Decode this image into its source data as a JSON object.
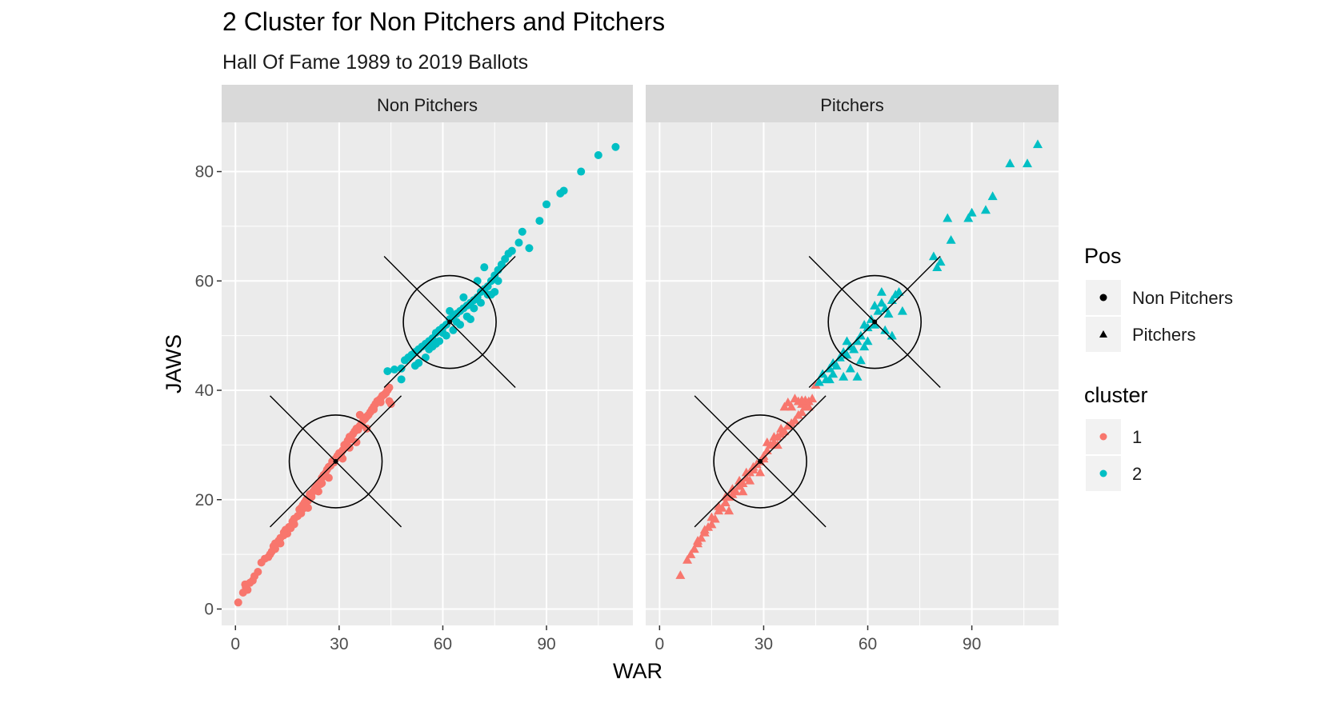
{
  "chart_data": {
    "type": "scatter",
    "title": "2 Cluster for Non Pitchers and Pitchers",
    "subtitle": "Hall Of Fame 1989 to 2019 Ballots",
    "xlabel": "WAR",
    "ylabel": "JAWS",
    "xlim": [
      -4,
      115
    ],
    "ylim": [
      -3,
      89
    ],
    "x_ticks": [
      0,
      30,
      60,
      90
    ],
    "y_ticks": [
      0,
      20,
      40,
      60,
      80
    ],
    "x_tick_labels": [
      "0",
      "30",
      "60",
      "90"
    ],
    "y_tick_labels": [
      "0",
      "20",
      "40",
      "60",
      "80"
    ],
    "grid": true,
    "legend_position": "right",
    "colors": {
      "1": "#F8766D",
      "2": "#00BFC4",
      "panel_bg": "#EBEBEB",
      "strip_bg": "#D9D9D9",
      "grid": "#FFFFFF",
      "ellipse": "#000000"
    },
    "legends": [
      {
        "title": "Pos",
        "items": [
          {
            "label": "Non Pitchers",
            "shape": "circle"
          },
          {
            "label": "Pitchers",
            "shape": "triangle"
          }
        ]
      },
      {
        "title": "cluster",
        "items": [
          {
            "label": "1",
            "color": "#F8766D"
          },
          {
            "label": "2",
            "color": "#00BFC4"
          }
        ]
      }
    ],
    "facets": [
      {
        "label": "Non Pitchers",
        "shape": "circle",
        "centers": [
          {
            "cluster": "1",
            "x": 29,
            "y": 27
          },
          {
            "cluster": "2",
            "x": 62,
            "y": 52.5
          }
        ],
        "cluster_1": [
          [
            0.8,
            1.2
          ],
          [
            2.2,
            3
          ],
          [
            2.8,
            4.5
          ],
          [
            3.5,
            3.5
          ],
          [
            4.2,
            4.8
          ],
          [
            5.5,
            6
          ],
          [
            6.5,
            6.8
          ],
          [
            8.5,
            9.2
          ],
          [
            9.5,
            9.5
          ],
          [
            10.5,
            10.5
          ],
          [
            11,
            11.5
          ],
          [
            11.5,
            12
          ],
          [
            12.5,
            12.5
          ],
          [
            13,
            13
          ],
          [
            14,
            13.5
          ],
          [
            14.5,
            14.5
          ],
          [
            15.5,
            15
          ],
          [
            16,
            14.8
          ],
          [
            16.5,
            16
          ],
          [
            17,
            16.5
          ],
          [
            18,
            17
          ],
          [
            18.5,
            18.2
          ],
          [
            19,
            18.5
          ],
          [
            19.5,
            19
          ],
          [
            20,
            18.5
          ],
          [
            20.5,
            20
          ],
          [
            21,
            19.8
          ],
          [
            21.5,
            21
          ],
          [
            22,
            20.5
          ],
          [
            22.5,
            21.5
          ],
          [
            23,
            22
          ],
          [
            23.5,
            22.5
          ],
          [
            24,
            23
          ],
          [
            24.5,
            22.8
          ],
          [
            25,
            24
          ],
          [
            25.5,
            24.5
          ],
          [
            26,
            24.8
          ],
          [
            26.5,
            25.5
          ],
          [
            27,
            26
          ],
          [
            27.5,
            26.2
          ],
          [
            28,
            27
          ],
          [
            28.5,
            26.8
          ],
          [
            29,
            27.5
          ],
          [
            29.5,
            28
          ],
          [
            30,
            28.5
          ],
          [
            30.5,
            28.2
          ],
          [
            31,
            29
          ],
          [
            31.5,
            30
          ],
          [
            32,
            30.2
          ],
          [
            32.5,
            30.8
          ],
          [
            33,
            31.5
          ],
          [
            33.5,
            31
          ],
          [
            34,
            32
          ],
          [
            34.5,
            32.5
          ],
          [
            35,
            33
          ],
          [
            35.5,
            32.8
          ],
          [
            36,
            33.5
          ],
          [
            36.5,
            34
          ],
          [
            37,
            34.5
          ],
          [
            37.5,
            34.8
          ],
          [
            38,
            35.2
          ],
          [
            38.5,
            35.5
          ],
          [
            39,
            36
          ],
          [
            39.5,
            36.5
          ],
          [
            40,
            37
          ],
          [
            40.5,
            37.5
          ],
          [
            41,
            38
          ],
          [
            41.5,
            38.2
          ],
          [
            42,
            38.5
          ],
          [
            42.5,
            39
          ],
          [
            43,
            39.2
          ],
          [
            43.5,
            39.5
          ],
          [
            44,
            40
          ],
          [
            44.5,
            40.5
          ],
          [
            45,
            37.5
          ],
          [
            40,
            36.5
          ],
          [
            38,
            33
          ],
          [
            35,
            30.5
          ],
          [
            33,
            29.5
          ],
          [
            31,
            27.5
          ],
          [
            27,
            24
          ],
          [
            24,
            21.5
          ],
          [
            21,
            18.5
          ],
          [
            19,
            17.5
          ],
          [
            17,
            15.5
          ],
          [
            15,
            13.8
          ],
          [
            13,
            12
          ],
          [
            11.5,
            11
          ],
          [
            10,
            10
          ],
          [
            7.5,
            8.5
          ],
          [
            5,
            5.2
          ],
          [
            3,
            4
          ],
          [
            25,
            23
          ],
          [
            36,
            35.5
          ],
          [
            42,
            37.8
          ],
          [
            44.5,
            38
          ],
          [
            20,
            19.5
          ],
          [
            14,
            14
          ]
        ],
        "cluster_2": [
          [
            44,
            43.5
          ],
          [
            46,
            43.8
          ],
          [
            48,
            44
          ],
          [
            49,
            45.5
          ],
          [
            50,
            46
          ],
          [
            51,
            46.5
          ],
          [
            52,
            47
          ],
          [
            53,
            47.5
          ],
          [
            54,
            48
          ],
          [
            55,
            48.5
          ],
          [
            56,
            49
          ],
          [
            57,
            49.5
          ],
          [
            58,
            50.5
          ],
          [
            59,
            51
          ],
          [
            60,
            51.5
          ],
          [
            61,
            52
          ],
          [
            62,
            53
          ],
          [
            63,
            53.5
          ],
          [
            64,
            54
          ],
          [
            65,
            54.5
          ],
          [
            66,
            55
          ],
          [
            67,
            55.5
          ],
          [
            68,
            56
          ],
          [
            69,
            56.5
          ],
          [
            70,
            57
          ],
          [
            71,
            58
          ],
          [
            72,
            58.5
          ],
          [
            73,
            59
          ],
          [
            74,
            60
          ],
          [
            75,
            61
          ],
          [
            76,
            62
          ],
          [
            77,
            63
          ],
          [
            78,
            64
          ],
          [
            79,
            65
          ],
          [
            80,
            65.5
          ],
          [
            82,
            67
          ],
          [
            83,
            69
          ],
          [
            85,
            66
          ],
          [
            88,
            71
          ],
          [
            90,
            74
          ],
          [
            94,
            76
          ],
          [
            95,
            76.5
          ],
          [
            100,
            80
          ],
          [
            105,
            83
          ],
          [
            110,
            84.5
          ],
          [
            48,
            42
          ],
          [
            52,
            44.5
          ],
          [
            55,
            46
          ],
          [
            57,
            48
          ],
          [
            59,
            49
          ],
          [
            61,
            50
          ],
          [
            63,
            51
          ],
          [
            65,
            52
          ],
          [
            67,
            53.5
          ],
          [
            69,
            55
          ],
          [
            71,
            56
          ],
          [
            73,
            57.5
          ],
          [
            53,
            45
          ],
          [
            60,
            50.5
          ],
          [
            70,
            60
          ],
          [
            72,
            62.5
          ],
          [
            74,
            57.5
          ],
          [
            66,
            57
          ],
          [
            64,
            52.5
          ],
          [
            56,
            47.5
          ],
          [
            58,
            48.5
          ],
          [
            62,
            54.5
          ],
          [
            68,
            53
          ],
          [
            75,
            58
          ],
          [
            76,
            60
          ]
        ]
      },
      {
        "label": "Pitchers",
        "shape": "triangle",
        "centers": [
          {
            "cluster": "1",
            "x": 29,
            "y": 27
          },
          {
            "cluster": "2",
            "x": 62,
            "y": 52.5
          }
        ],
        "cluster_1": [
          [
            6,
            6.2
          ],
          [
            8,
            9
          ],
          [
            10,
            11
          ],
          [
            11,
            12
          ],
          [
            12,
            13
          ],
          [
            13,
            14
          ],
          [
            14,
            15
          ],
          [
            15,
            15.5
          ],
          [
            16,
            16.5
          ],
          [
            17,
            18
          ],
          [
            18,
            18.5
          ],
          [
            19,
            19.5
          ],
          [
            20,
            20.5
          ],
          [
            21,
            21
          ],
          [
            22,
            21.5
          ],
          [
            23,
            22.5
          ],
          [
            24,
            23
          ],
          [
            25,
            24
          ],
          [
            26,
            25
          ],
          [
            27,
            25.5
          ],
          [
            28,
            26.5
          ],
          [
            29,
            27
          ],
          [
            30,
            28
          ],
          [
            31,
            29
          ],
          [
            32,
            30
          ],
          [
            33,
            30.5
          ],
          [
            34,
            31.5
          ],
          [
            35,
            32
          ],
          [
            36,
            32.5
          ],
          [
            37,
            33.5
          ],
          [
            38,
            34
          ],
          [
            39,
            34.5
          ],
          [
            40,
            35.5
          ],
          [
            41,
            36
          ],
          [
            42,
            37
          ],
          [
            43,
            38
          ],
          [
            44,
            38.5
          ],
          [
            36,
            37
          ],
          [
            37,
            37.8
          ],
          [
            38,
            37
          ],
          [
            39,
            38.5
          ],
          [
            40,
            38
          ],
          [
            41,
            37.5
          ],
          [
            42,
            38.2
          ],
          [
            43,
            37
          ],
          [
            35,
            33
          ],
          [
            33,
            31.5
          ],
          [
            31,
            30.5
          ],
          [
            27,
            26
          ],
          [
            25,
            25
          ],
          [
            23,
            23.5
          ],
          [
            21,
            22
          ],
          [
            19,
            20.5
          ],
          [
            17,
            18.8
          ],
          [
            15,
            16.8
          ],
          [
            13,
            14.5
          ],
          [
            11,
            12.5
          ],
          [
            9,
            10
          ],
          [
            26,
            23.5
          ],
          [
            30,
            27.5
          ],
          [
            24,
            21.5
          ],
          [
            20,
            18
          ],
          [
            45,
            41
          ],
          [
            41,
            38.2
          ],
          [
            34,
            30
          ],
          [
            29,
            25
          ]
        ],
        "cluster_2": [
          [
            46,
            41.5
          ],
          [
            47,
            43
          ],
          [
            48,
            42
          ],
          [
            49,
            44
          ],
          [
            50,
            45
          ],
          [
            51,
            44.5
          ],
          [
            52,
            46
          ],
          [
            53,
            47
          ],
          [
            54,
            46.5
          ],
          [
            55,
            48
          ],
          [
            56,
            47.5
          ],
          [
            57,
            49
          ],
          [
            58,
            50
          ],
          [
            59,
            52
          ],
          [
            60,
            51.5
          ],
          [
            61,
            53
          ],
          [
            62,
            52
          ],
          [
            63,
            54.5
          ],
          [
            64,
            56
          ],
          [
            65,
            55
          ],
          [
            66,
            54
          ],
          [
            67,
            56.5
          ],
          [
            68,
            57.5
          ],
          [
            69,
            58
          ],
          [
            70,
            54.5
          ],
          [
            64,
            58
          ],
          [
            65,
            51
          ],
          [
            58,
            45.5
          ],
          [
            55,
            44
          ],
          [
            53,
            42.5
          ],
          [
            50,
            43
          ],
          [
            57,
            42.5
          ],
          [
            49,
            42
          ],
          [
            79,
            64.5
          ],
          [
            80,
            62.5
          ],
          [
            81,
            63.5
          ],
          [
            83,
            71.5
          ],
          [
            84,
            67.5
          ],
          [
            89,
            71.5
          ],
          [
            90,
            72.5
          ],
          [
            94,
            73
          ],
          [
            96,
            75.5
          ],
          [
            101,
            81.5
          ],
          [
            106,
            81.5
          ],
          [
            109,
            85
          ],
          [
            60,
            49
          ],
          [
            62,
            55.5
          ],
          [
            67,
            50
          ],
          [
            59,
            48
          ],
          [
            54,
            49
          ]
        ]
      }
    ]
  }
}
